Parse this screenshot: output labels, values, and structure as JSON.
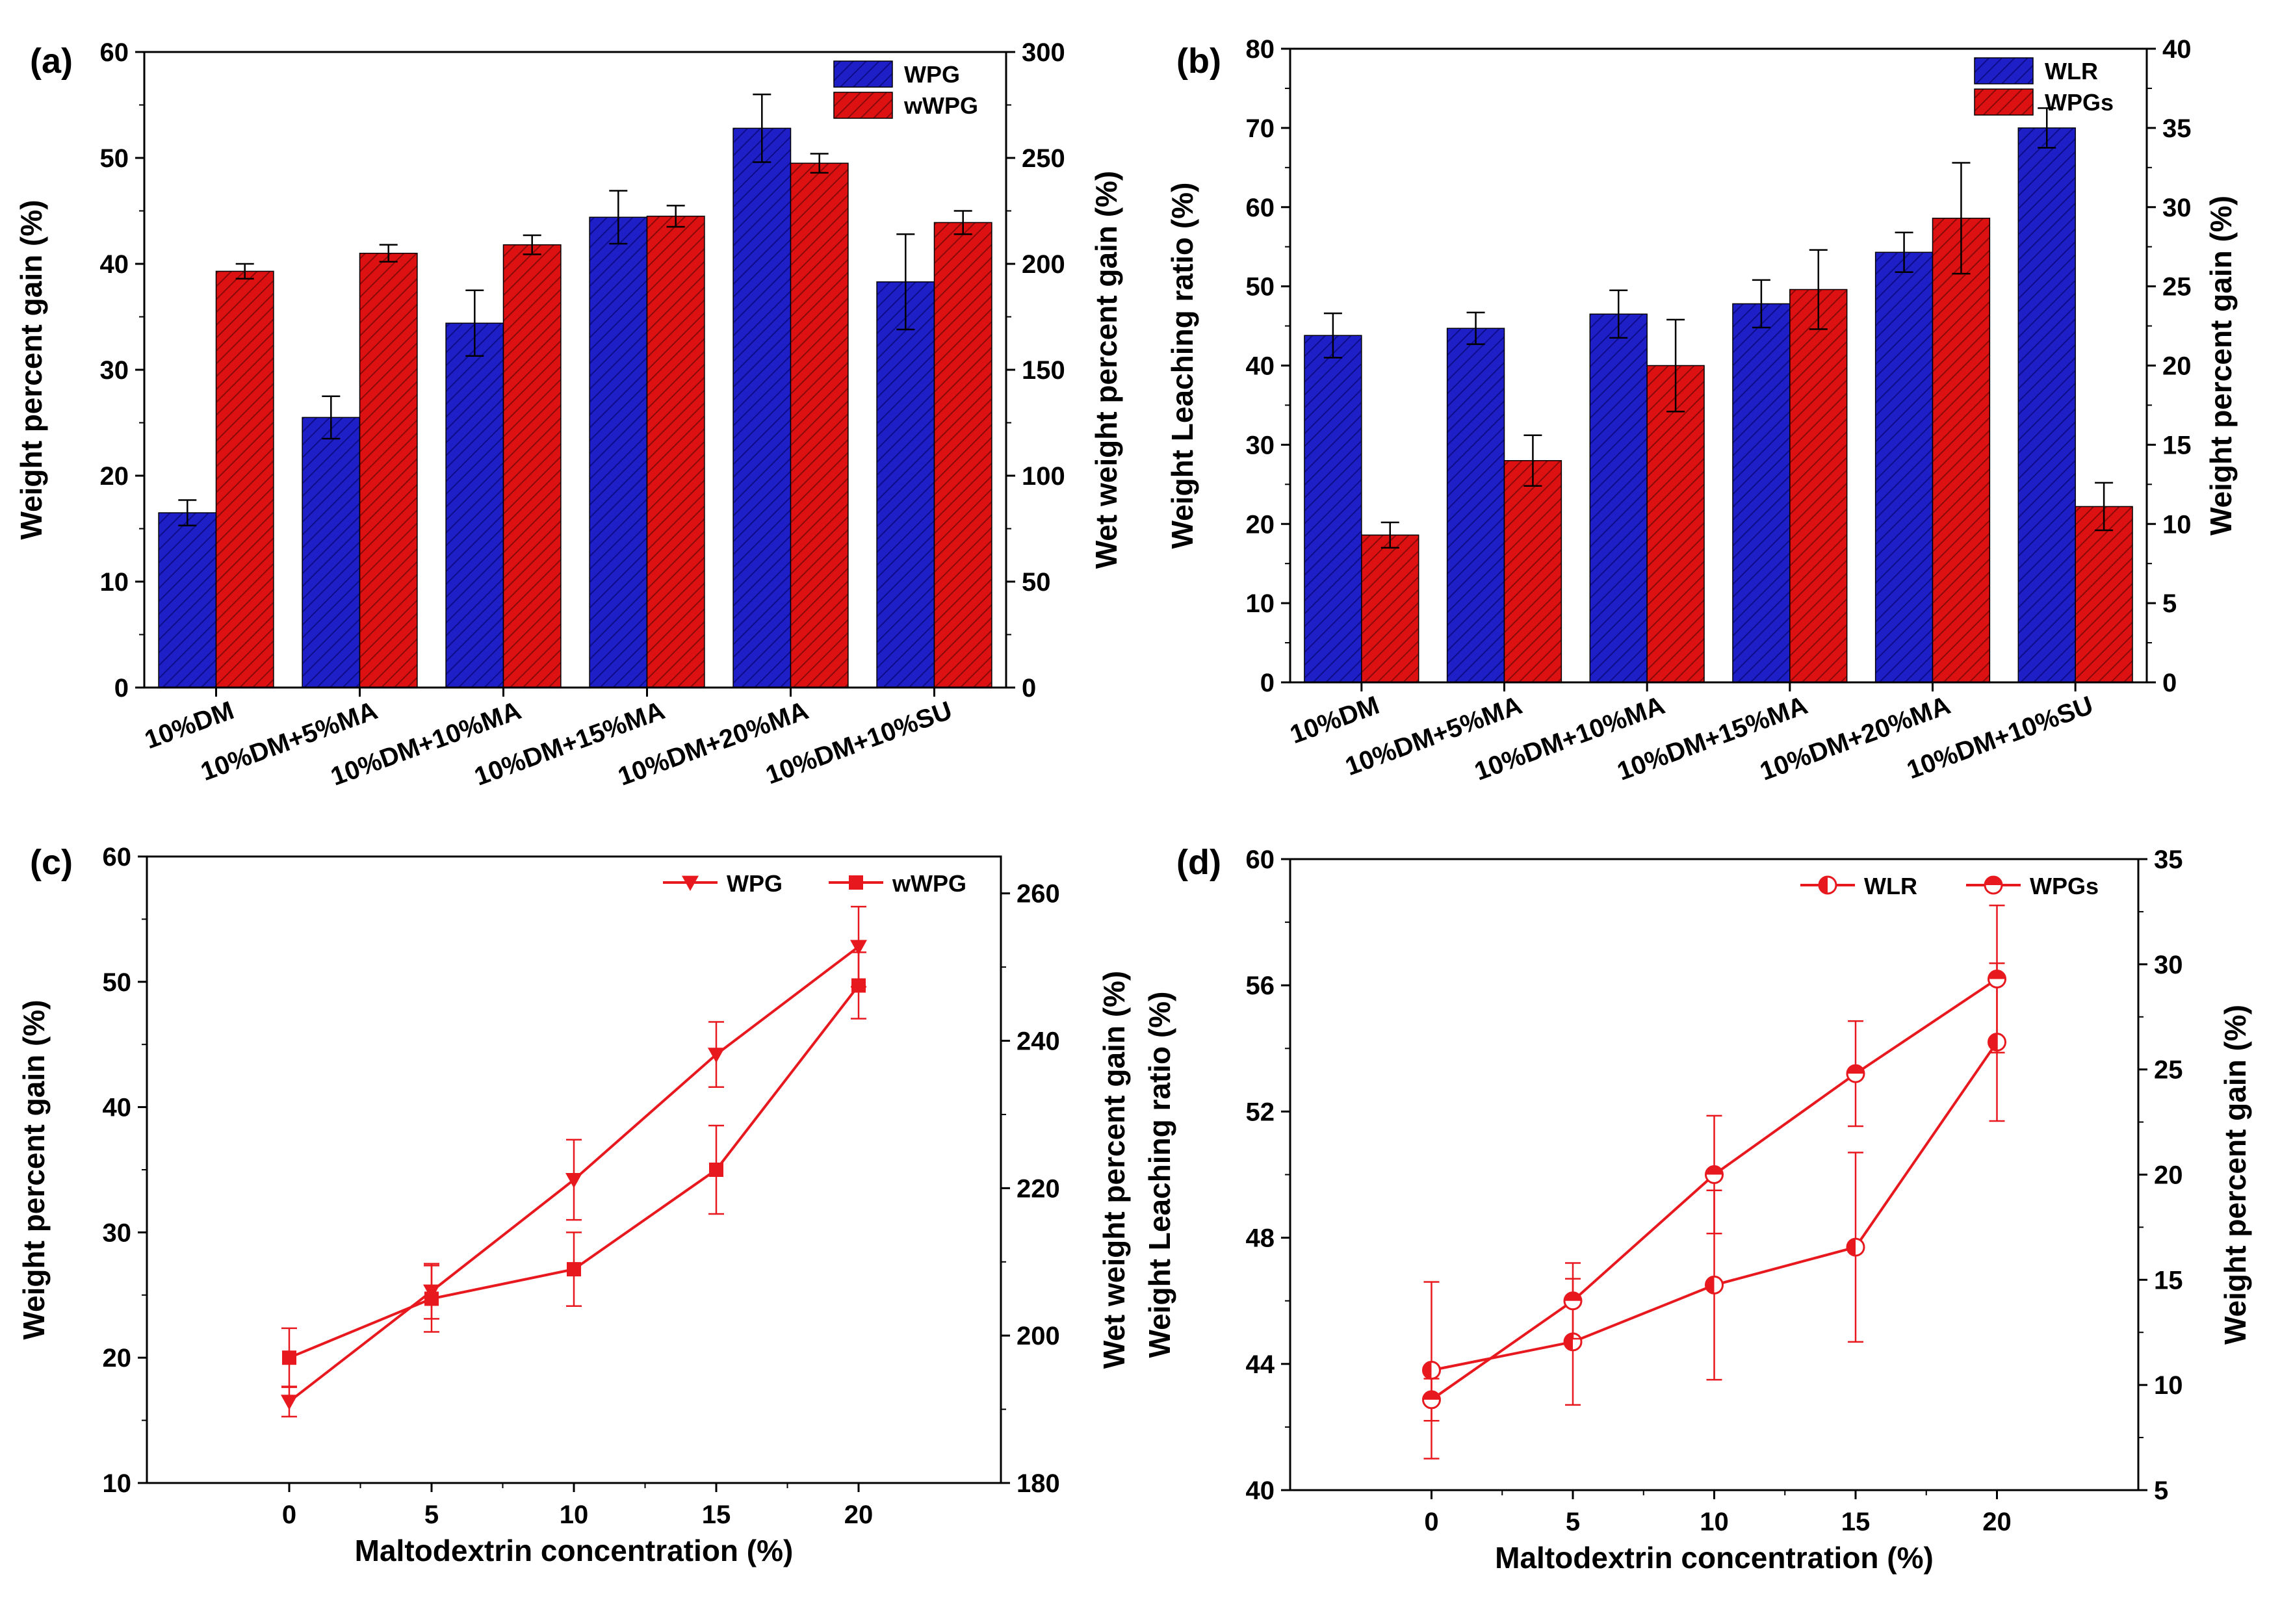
{
  "colors": {
    "blue": "#1f1fc8",
    "red": "#dd1111",
    "line": "#e8191e",
    "axis": "#000000"
  },
  "chart_data": [
    {
      "panel": "(a)",
      "type": "bar",
      "categories": [
        "10%DM",
        "10%DM+5%MA",
        "10%DM+10%MA",
        "10%DM+15%MA",
        "10%DM+20%MA",
        "10%DM+10%SU"
      ],
      "ylabel": "Weight percent gain (%)",
      "y2label": "Wet weight percent gain (%)",
      "ylim": [
        0,
        60
      ],
      "yticks": [
        0,
        10,
        20,
        30,
        40,
        50,
        60
      ],
      "y2lim": [
        0,
        300
      ],
      "y2ticks": [
        0,
        50,
        100,
        150,
        200,
        250,
        300
      ],
      "legend_position": "top-right",
      "series": [
        {
          "name": "WPG",
          "axis": "left",
          "color": "blue",
          "values": [
            16.5,
            25.5,
            34.4,
            44.4,
            52.8,
            38.3
          ],
          "errors": [
            1.2,
            2.0,
            3.1,
            2.5,
            3.2,
            4.5
          ]
        },
        {
          "name": "wWPG",
          "axis": "right",
          "color": "red",
          "values": [
            196.5,
            205.0,
            209.0,
            222.5,
            247.5,
            219.5
          ],
          "errors": [
            3.5,
            4.0,
            4.5,
            5.0,
            4.5,
            5.5
          ]
        }
      ]
    },
    {
      "panel": "(b)",
      "type": "bar",
      "categories": [
        "10%DM",
        "10%DM+5%MA",
        "10%DM+10%MA",
        "10%DM+15%MA",
        "10%DM+20%MA",
        "10%DM+10%SU"
      ],
      "ylabel": "Weight Leaching ratio (%)",
      "y2label": "Weight percent gain (%)",
      "ylim": [
        0,
        80
      ],
      "yticks": [
        0,
        10,
        20,
        30,
        40,
        50,
        60,
        70,
        80
      ],
      "y2lim": [
        0,
        40
      ],
      "y2ticks": [
        0,
        5,
        10,
        15,
        20,
        25,
        30,
        35,
        40
      ],
      "legend_position": "top-right",
      "series": [
        {
          "name": "WLR",
          "axis": "left",
          "color": "blue",
          "values": [
            43.8,
            44.7,
            46.5,
            47.8,
            54.3,
            70.0
          ],
          "errors": [
            2.8,
            2.0,
            3.0,
            3.0,
            2.5,
            2.5
          ]
        },
        {
          "name": "WPGs",
          "axis": "right",
          "color": "red",
          "values": [
            9.3,
            14.0,
            20.0,
            24.8,
            29.3,
            11.1
          ],
          "errors": [
            0.8,
            1.6,
            2.9,
            2.5,
            3.5,
            1.5
          ]
        }
      ]
    },
    {
      "panel": "(c)",
      "type": "line",
      "x": [
        0,
        5,
        10,
        15,
        20
      ],
      "xlabel": "Maltodextrin concentration (%)",
      "ylabel": "Weight percent gain (%)",
      "y2label": "Wet weight percent gain (%)",
      "xlim": [
        -5,
        25
      ],
      "xticks": [
        0,
        5,
        10,
        15,
        20
      ],
      "ylim": [
        10,
        60
      ],
      "yticks": [
        10,
        20,
        30,
        40,
        50,
        60
      ],
      "y2lim": [
        180,
        265
      ],
      "y2ticks": [
        180,
        200,
        220,
        240,
        260
      ],
      "legend_position": "top-right",
      "series": [
        {
          "name": "WPG",
          "axis": "left",
          "marker": "triangle-down",
          "values": [
            16.5,
            25.3,
            34.2,
            44.2,
            52.8
          ],
          "errors": [
            1.2,
            2.2,
            3.2,
            2.6,
            3.2
          ]
        },
        {
          "name": "wWPG",
          "axis": "right",
          "marker": "square",
          "values": [
            197.0,
            205.0,
            209.0,
            222.5,
            247.5
          ],
          "errors": [
            4.0,
            4.5,
            5.0,
            6.0,
            4.5
          ]
        }
      ]
    },
    {
      "panel": "(d)",
      "type": "line",
      "x": [
        0,
        5,
        10,
        15,
        20
      ],
      "xlabel": "Maltodextrin concentration (%)",
      "ylabel": "Weight Leaching ratio (%)",
      "y2label": "Weight percent gain (%)",
      "xlim": [
        -5,
        25
      ],
      "xticks": [
        0,
        5,
        10,
        15,
        20
      ],
      "ylim": [
        40,
        60
      ],
      "yticks": [
        40,
        44,
        48,
        52,
        56,
        60
      ],
      "y2lim": [
        5,
        35
      ],
      "y2ticks": [
        5,
        10,
        15,
        20,
        25,
        30,
        35
      ],
      "legend_position": "top-right",
      "series": [
        {
          "name": "WLR",
          "axis": "left",
          "marker": "circle-left-half",
          "values": [
            43.8,
            44.7,
            46.5,
            47.7,
            54.2
          ],
          "errors": [
            2.8,
            2.0,
            3.0,
            3.0,
            2.5
          ]
        },
        {
          "name": "WPGs",
          "axis": "right",
          "marker": "circle-top-half",
          "values": [
            9.3,
            14.0,
            20.0,
            24.8,
            29.3
          ],
          "errors": [
            1.0,
            1.8,
            2.8,
            2.5,
            3.5
          ]
        }
      ]
    }
  ]
}
